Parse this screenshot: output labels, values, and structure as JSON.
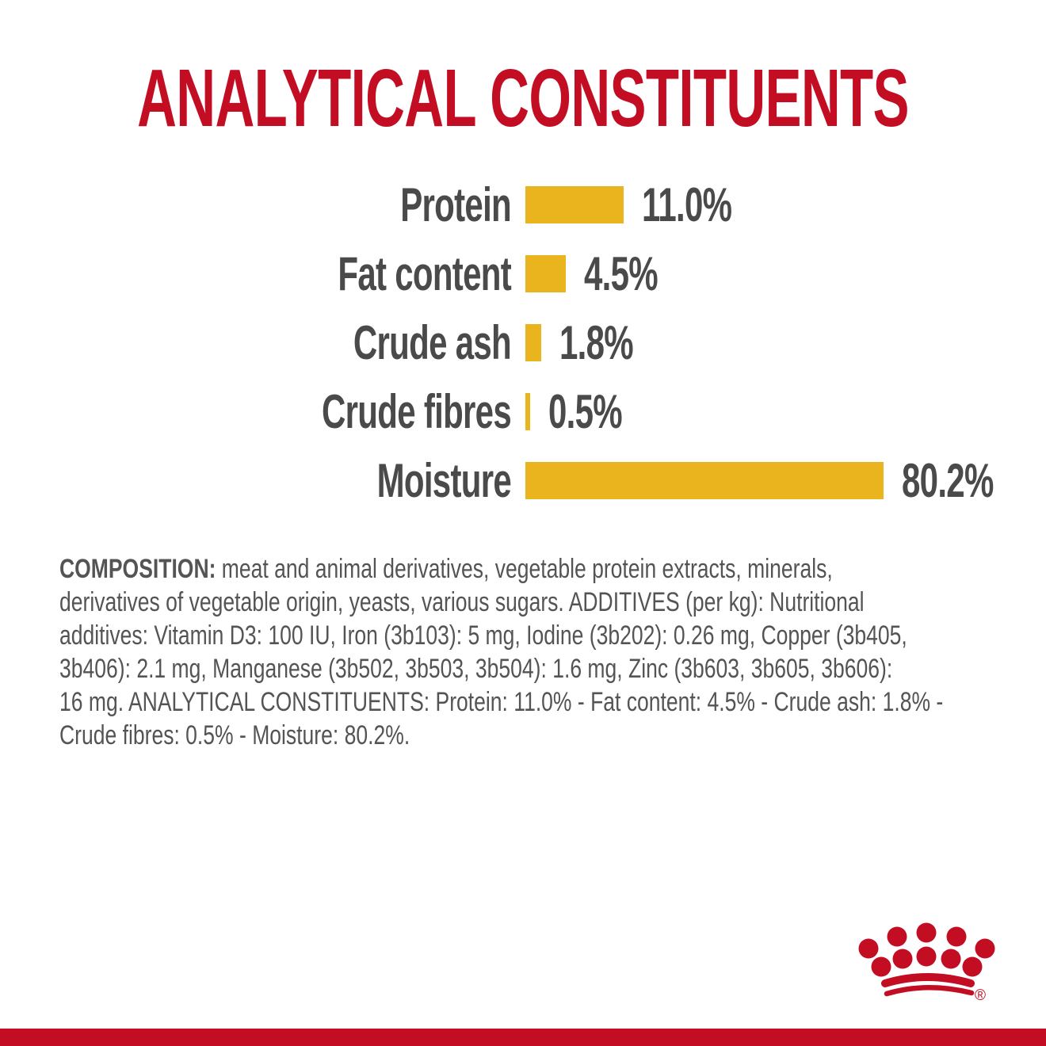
{
  "title": "ANALYTICAL CONSTITUENTS",
  "chart_data": {
    "type": "bar",
    "orientation": "horizontal",
    "categories": [
      "Protein",
      "Fat content",
      "Crude ash",
      "Crude fibres",
      "Moisture"
    ],
    "values": [
      11.0,
      4.5,
      1.8,
      0.5,
      80.2
    ],
    "value_labels": [
      "11.0%",
      "4.5%",
      "1.8%",
      "0.5%",
      "80.2%"
    ],
    "title": "ANALYTICAL CONSTITUENTS",
    "xlabel": "",
    "ylabel": "",
    "axis_shown": false,
    "grid": false,
    "legend": false,
    "bar_color": "#E9B41E",
    "text_color": "#4A4A4A"
  },
  "composition": {
    "lines": [
      {
        "bold": "COMPOSITION:",
        "text": " meat and animal derivatives, vegetable protein extracts, minerals,"
      },
      {
        "bold": "",
        "text": "derivatives of vegetable origin, yeasts, various sugars. ADDITIVES (per kg): Nutritional"
      },
      {
        "bold": "",
        "text": "additives: Vitamin D3: 100 IU, Iron (3b103): 5 mg, Iodine (3b202): 0.26 mg, Copper (3b405,"
      },
      {
        "bold": "",
        "text": "3b406): 2.1 mg, Manganese (3b502, 3b503, 3b504): 1.6 mg, Zinc (3b603, 3b605, 3b606):"
      },
      {
        "bold": "",
        "text": "16 mg. ANALYTICAL CONSTITUENTS: Protein: 11.0% - Fat content: 4.5% - Crude ash: 1.8% -"
      },
      {
        "bold": "",
        "text": "Crude fibres: 0.5% - Moisture: 80.2%."
      }
    ]
  },
  "brand": {
    "logo": "royal-canin-crown",
    "registered_mark": "®"
  },
  "colors": {
    "accent_red": "#C30D23",
    "bar_gold": "#E9B41E",
    "heading_gray": "#4A4A4A",
    "body_gray": "#545454",
    "background": "#FFFFFF"
  }
}
